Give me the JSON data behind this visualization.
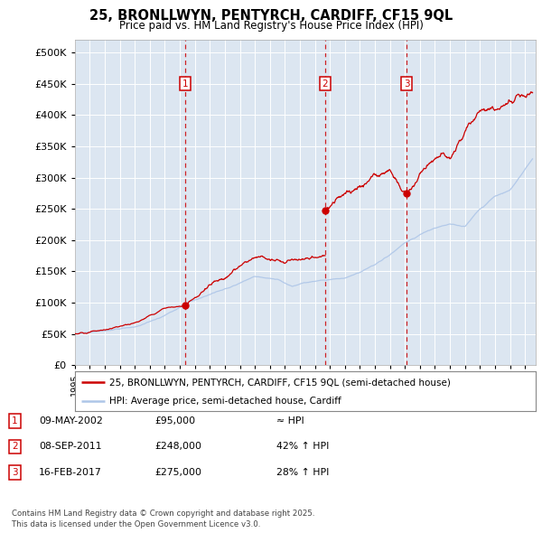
{
  "title": "25, BRONLLWYN, PENTYRCH, CARDIFF, CF15 9QL",
  "subtitle": "Price paid vs. HM Land Registry's House Price Index (HPI)",
  "plot_bg_color": "#dce6f1",
  "hpi_line_color": "#aec6e8",
  "price_line_color": "#cc0000",
  "sale_dates_year": [
    2002.354,
    2011.687,
    2017.12
  ],
  "sale_prices": [
    95000,
    248000,
    275000
  ],
  "sale_labels": [
    "1",
    "2",
    "3"
  ],
  "ylim": [
    0,
    520000
  ],
  "yticks": [
    0,
    50000,
    100000,
    150000,
    200000,
    250000,
    300000,
    350000,
    400000,
    450000,
    500000
  ],
  "xlim_start": 1995.0,
  "xlim_end": 2025.7,
  "legend_entries": [
    "25, BRONLLWYN, PENTYRCH, CARDIFF, CF15 9QL (semi-detached house)",
    "HPI: Average price, semi-detached house, Cardiff"
  ],
  "table_data": [
    {
      "num": "1",
      "date": "09-MAY-2002",
      "price": "£95,000",
      "hpi": "≈ HPI"
    },
    {
      "num": "2",
      "date": "08-SEP-2011",
      "price": "£248,000",
      "hpi": "42% ↑ HPI"
    },
    {
      "num": "3",
      "date": "16-FEB-2017",
      "price": "£275,000",
      "hpi": "28% ↑ HPI"
    }
  ],
  "footer": "Contains HM Land Registry data © Crown copyright and database right 2025.\nThis data is licensed under the Open Government Licence v3.0."
}
